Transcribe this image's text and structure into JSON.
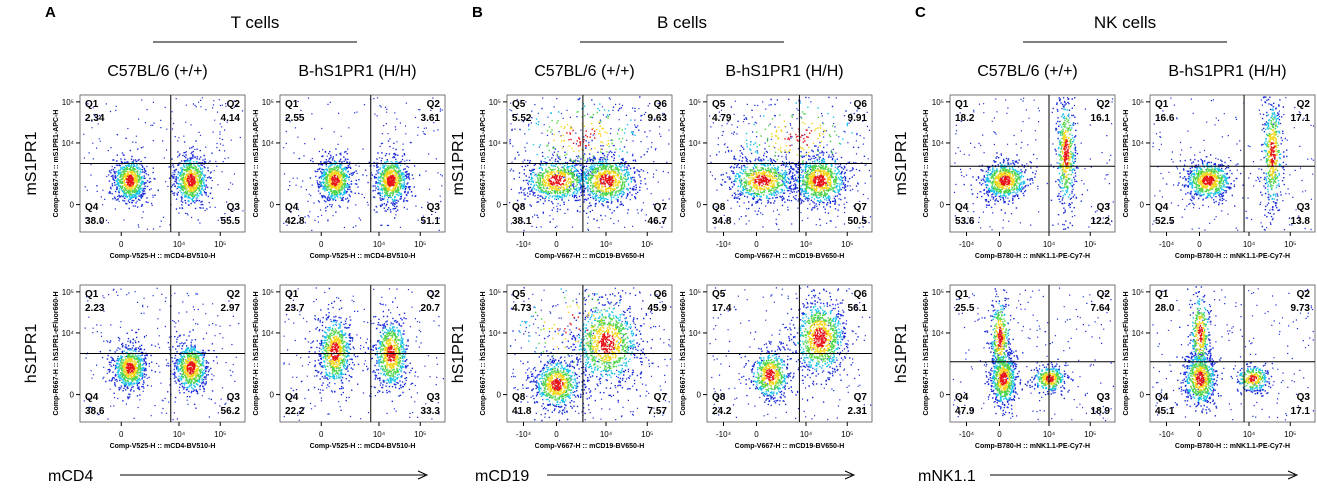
{
  "panels": [
    {
      "letter": "A",
      "title": "T cells",
      "x_label": "mCD4",
      "columns": [
        "C57BL/6 (+/+)",
        "B-hS1PR1 (H/H)"
      ],
      "rows": [
        "mS1PR1",
        "hS1PR1"
      ],
      "xticks": [
        "0",
        "10⁴",
        "10⁵"
      ],
      "yticks": [
        "10⁵",
        "10⁴",
        "0"
      ],
      "plots": [
        {
          "y_axis": "Comp-R667-H :: mS1PR1-APC-H",
          "x_axis": "Comp-V525-H :: mCD4-BV510-H",
          "quadrants": [
            {
              "name": "Q1",
              "value": "2.34"
            },
            {
              "name": "Q2",
              "value": "4.14"
            },
            {
              "name": "Q4",
              "value": "38.0"
            },
            {
              "name": "Q3",
              "value": "55.5"
            }
          ]
        },
        {
          "y_axis": "Comp-R667-H :: mS1PR1-APC-H",
          "x_axis": "Comp-V525-H :: mCD4-BV510-H",
          "quadrants": [
            {
              "name": "Q1",
              "value": "2.55"
            },
            {
              "name": "Q2",
              "value": "3.61"
            },
            {
              "name": "Q4",
              "value": "42.8"
            },
            {
              "name": "Q3",
              "value": "51.1"
            }
          ]
        },
        {
          "y_axis": "Comp-R667-H :: hS1PR1-eFluor660-H",
          "x_axis": "Comp-V525-H :: mCD4-BV510-H",
          "quadrants": [
            {
              "name": "Q1",
              "value": "2.23"
            },
            {
              "name": "Q2",
              "value": "2.97"
            },
            {
              "name": "Q4",
              "value": "38.6"
            },
            {
              "name": "Q3",
              "value": "56.2"
            }
          ]
        },
        {
          "y_axis": "Comp-R667-H :: hS1PR1-eFluor660-H",
          "x_axis": "Comp-V525-H :: mCD4-BV510-H",
          "quadrants": [
            {
              "name": "Q1",
              "value": "23.7"
            },
            {
              "name": "Q2",
              "value": "20.7"
            },
            {
              "name": "Q4",
              "value": "22.2"
            },
            {
              "name": "Q3",
              "value": "33.3"
            }
          ]
        }
      ]
    },
    {
      "letter": "B",
      "title": "B cells",
      "x_label": "mCD19",
      "columns": [
        "C57BL/6 (+/+)",
        "B-hS1PR1 (H/H)"
      ],
      "rows": [
        "mS1PR1",
        "hS1PR1"
      ],
      "xticks": [
        "-10⁴",
        "0",
        "10⁴",
        "10⁵"
      ],
      "yticks": [
        "10⁵",
        "10⁴",
        "0"
      ],
      "plots": [
        {
          "y_axis": "Comp-R667-H :: mS1PR1-APC-H",
          "x_axis": "Comp-V667-H :: mCD19-BV650-H",
          "quadrants": [
            {
              "name": "Q5",
              "value": "5.52"
            },
            {
              "name": "Q6",
              "value": "9.63"
            },
            {
              "name": "Q8",
              "value": "38.1"
            },
            {
              "name": "Q7",
              "value": "46.7"
            }
          ]
        },
        {
          "y_axis": "Comp-R667-H :: mS1PR1-APC-H",
          "x_axis": "Comp-V667-H :: mCD19-BV650-H",
          "quadrants": [
            {
              "name": "Q5",
              "value": "4.79"
            },
            {
              "name": "Q6",
              "value": "9.91"
            },
            {
              "name": "Q8",
              "value": "34.8"
            },
            {
              "name": "Q7",
              "value": "50.5"
            }
          ]
        },
        {
          "y_axis": "Comp-R667-H :: hS1PR1-eFluor660-H",
          "x_axis": "Comp-V667-H :: mCD19-BV650-H",
          "quadrants": [
            {
              "name": "Q5",
              "value": "4.73"
            },
            {
              "name": "Q6",
              "value": "45.9"
            },
            {
              "name": "Q8",
              "value": "41.8"
            },
            {
              "name": "Q7",
              "value": "7.57"
            }
          ]
        },
        {
          "y_axis": "Comp-R667-H :: hS1PR1-eFluor660-H",
          "x_axis": "Comp-V667-H :: mCD19-BV650-H",
          "quadrants": [
            {
              "name": "Q5",
              "value": "17.4"
            },
            {
              "name": "Q6",
              "value": "56.1"
            },
            {
              "name": "Q8",
              "value": "24.2"
            },
            {
              "name": "Q7",
              "value": "2.31"
            }
          ]
        }
      ]
    },
    {
      "letter": "C",
      "title": "NK cells",
      "x_label": "mNK1.1",
      "columns": [
        "C57BL/6 (+/+)",
        "B-hS1PR1 (H/H)"
      ],
      "rows": [
        "mS1PR1",
        "hS1PR1"
      ],
      "xticks": [
        "-10⁴",
        "0",
        "10⁴",
        "10⁵"
      ],
      "yticks": [
        "10⁵",
        "10⁴",
        "0"
      ],
      "plots": [
        {
          "y_axis": "Comp-R667-H :: mS1PR1-APC-H",
          "x_axis": "Comp-B780-H :: mNK1.1-PE-Cy7-H",
          "quadrants": [
            {
              "name": "Q1",
              "value": "18.2"
            },
            {
              "name": "Q2",
              "value": "16.1"
            },
            {
              "name": "Q4",
              "value": "53.6"
            },
            {
              "name": "Q3",
              "value": "12.2"
            }
          ]
        },
        {
          "y_axis": "Comp-R667-H :: mS1PR1-APC-H",
          "x_axis": "Comp-B780-H :: mNK1.1-PE-Cy7-H",
          "quadrants": [
            {
              "name": "Q1",
              "value": "16.6"
            },
            {
              "name": "Q2",
              "value": "17.1"
            },
            {
              "name": "Q4",
              "value": "52.5"
            },
            {
              "name": "Q3",
              "value": "13.8"
            }
          ]
        },
        {
          "y_axis": "Comp-R667-H :: hS1PR1-eFluor660-H",
          "x_axis": "Comp-B780-H :: mNK1.1-PE-Cy7-H",
          "quadrants": [
            {
              "name": "Q1",
              "value": "25.5"
            },
            {
              "name": "Q2",
              "value": "7.64"
            },
            {
              "name": "Q4",
              "value": "47.9"
            },
            {
              "name": "Q3",
              "value": "18.9"
            }
          ]
        },
        {
          "y_axis": "Comp-R667-H :: hS1PR1-eFluor660-H",
          "x_axis": "Comp-B780-H :: mNK1.1-PE-Cy7-H",
          "quadrants": [
            {
              "name": "Q1",
              "value": "28.0"
            },
            {
              "name": "Q2",
              "value": "9.73"
            },
            {
              "name": "Q4",
              "value": "45.1"
            },
            {
              "name": "Q3",
              "value": "17.1"
            }
          ]
        }
      ]
    }
  ]
}
